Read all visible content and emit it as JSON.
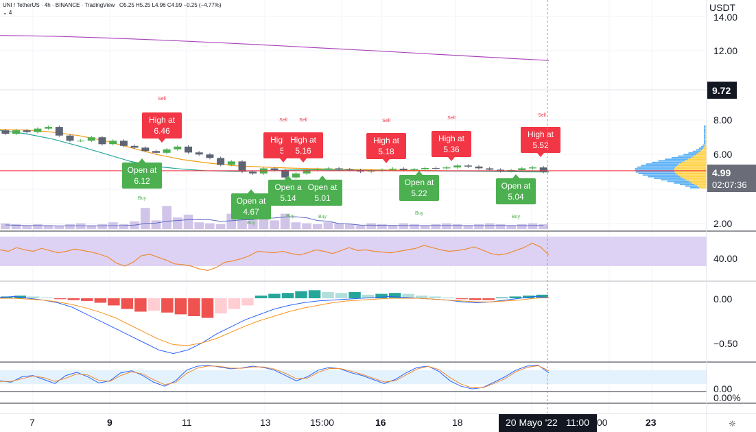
{
  "header": {
    "symbol": "UNI / TetherUS",
    "interval": "4h",
    "exchange": "BINANCE",
    "source": "TradingView",
    "ohlc": "O5.25 H5.25 L4.96 C4.99 −0.25 (−4.77%)",
    "indicator_toggle": "⌄ 4"
  },
  "price_axis": {
    "currency": "USDT",
    "ticks": [
      "14.00",
      "12.00",
      "8.00",
      "6.00",
      "2.00"
    ],
    "marker_high": "9.72",
    "marker_last": "4.99",
    "countdown": "02:07:36"
  },
  "rsi_axis": {
    "ticks": [
      "40.00"
    ]
  },
  "macd_axis": {
    "ticks": [
      "0.00",
      "−0.50"
    ]
  },
  "stoch_axis": {
    "ticks": [
      "0.00",
      "0.00%"
    ]
  },
  "time_axis": {
    "ticks": [
      "7",
      "9",
      "11",
      "13",
      "15:00",
      "16",
      "18",
      "20",
      "23"
    ],
    "bold": [
      "9",
      "16"
    ],
    "crosshair_date": "20 Mayo '22",
    "crosshair_time": "11:00"
  },
  "colors": {
    "up": "#26a69a",
    "down": "#ef5350",
    "sell_label": "#f23645",
    "buy_label": "#4caf50",
    "ma_orange": "#f39c12",
    "ma_teal": "#26a69a",
    "ma_purple": "#ab47bc",
    "rsi_band": "#d9cdf3",
    "volume": "#d1c4e9"
  },
  "chart_data": [
    {
      "type": "line",
      "pane": "price",
      "y_ticks": [
        2,
        6,
        8,
        12,
        14
      ],
      "last_price": 4.99,
      "signals": [
        {
          "kind": "sell",
          "label": "Sell"
        },
        {
          "kind": "high",
          "label": "High at",
          "value": "6.46"
        },
        {
          "kind": "open",
          "label": "Open at",
          "value": "6.12"
        },
        {
          "kind": "buy",
          "label": "Buy"
        },
        {
          "kind": "open",
          "label": "Open at",
          "value": "4.67"
        },
        {
          "kind": "buy",
          "label": "Buy"
        },
        {
          "kind": "sell",
          "label": "Sell"
        },
        {
          "kind": "high",
          "label": "High at",
          "value": "5."
        },
        {
          "kind": "high",
          "label": "High at",
          "value": "5.16"
        },
        {
          "kind": "open",
          "label": "Open a",
          "value": "5.14"
        },
        {
          "kind": "buy",
          "label": "Buy"
        },
        {
          "kind": "sell",
          "label": "Sell"
        },
        {
          "kind": "open",
          "label": "Open at",
          "value": "5.01"
        },
        {
          "kind": "buy",
          "label": "Buy"
        },
        {
          "kind": "sell",
          "label": "Sell"
        },
        {
          "kind": "high",
          "label": "High at",
          "value": "5.18"
        },
        {
          "kind": "open",
          "label": "Open at",
          "value": "5.22"
        },
        {
          "kind": "buy",
          "label": "Buy"
        },
        {
          "kind": "sell",
          "label": "Sell"
        },
        {
          "kind": "high",
          "label": "High at",
          "value": "5.36"
        },
        {
          "kind": "buy",
          "label": "Buy"
        },
        {
          "kind": "open",
          "label": "Open at",
          "value": "5.04"
        },
        {
          "kind": "sell",
          "label": "Sell"
        },
        {
          "kind": "high",
          "label": "High at",
          "value": "5.52"
        }
      ],
      "series": [
        {
          "name": "",
          "color": "#ab47bc",
          "values": [
            12.9,
            12.85,
            12.75,
            12.62,
            12.48,
            12.32,
            12.15,
            11.98,
            11.8,
            11.62,
            11.45
          ]
        },
        {
          "name": "",
          "color": "#f39c12",
          "values": [
            7.45,
            7.42,
            7.3,
            7.1,
            6.8,
            6.4,
            6.0,
            5.7,
            5.5,
            5.35,
            5.28,
            5.22,
            5.18,
            5.15,
            5.12,
            5.1,
            5.08,
            5.06,
            5.04,
            5.03,
            5.02,
            5.0
          ]
        },
        {
          "name": "",
          "color": "#26a69a",
          "values": [
            7.4,
            7.2,
            6.9,
            6.5,
            6.05,
            5.6,
            5.3,
            5.15,
            5.05,
            5.02,
            5.05,
            5.1,
            5.12,
            5.1,
            5.08,
            5.06,
            5.05,
            5.04,
            5.03,
            5.02,
            5.0,
            4.99
          ]
        }
      ],
      "candles": {
        "open": [
          7.4,
          7.2,
          7.4,
          7.3,
          7.5,
          7.6,
          7.1,
          6.8,
          6.8,
          7.0,
          6.6,
          6.8,
          6.5,
          6.4,
          6.2,
          6.1,
          6.3,
          6.46,
          6.12,
          6.0,
          5.8,
          5.4,
          5.6,
          5.0,
          4.9,
          5.2,
          5.1,
          4.67,
          4.9,
          5.1,
          5.16,
          5.2,
          5.14,
          5.1,
          5.01,
          5.08,
          5.12,
          5.18,
          5.1,
          5.15,
          5.22,
          5.2,
          5.25,
          5.36,
          5.3,
          5.2,
          5.12,
          5.04,
          5.1,
          5.2,
          5.25
        ],
        "close": [
          7.2,
          7.4,
          7.3,
          7.5,
          7.6,
          7.1,
          6.8,
          6.8,
          7.0,
          6.6,
          6.8,
          6.5,
          6.4,
          6.2,
          6.1,
          6.3,
          6.46,
          6.12,
          6.0,
          5.8,
          5.4,
          5.6,
          5.0,
          4.9,
          5.2,
          5.1,
          4.67,
          4.9,
          5.1,
          5.16,
          5.2,
          5.14,
          5.1,
          5.01,
          5.08,
          5.12,
          5.18,
          5.1,
          5.15,
          5.22,
          5.2,
          5.25,
          5.36,
          5.3,
          5.2,
          5.12,
          5.04,
          5.1,
          5.2,
          5.25,
          4.99
        ]
      },
      "volume": [
        0.6,
        0.5,
        0.4,
        0.5,
        0.4,
        0.3,
        0.5,
        0.6,
        0.4,
        0.5,
        0.7,
        0.5,
        0.8,
        2.2,
        0.9,
        2.4,
        1.2,
        1.5,
        0.7,
        0.6,
        0.5,
        1.6,
        3.3,
        1.4,
        3.0,
        0.9,
        1.6,
        0.7,
        0.6,
        0.5,
        0.7,
        0.6,
        0.5,
        0.4,
        0.6,
        0.5,
        0.4,
        0.6,
        0.5,
        0.4,
        0.5,
        0.6,
        0.5,
        0.4,
        0.5,
        0.6,
        0.5,
        0.4,
        0.5,
        0.6,
        0.5
      ]
    },
    {
      "type": "line",
      "pane": "rsi",
      "y_ticks": [
        40
      ],
      "band": [
        30,
        70
      ],
      "series": [
        {
          "name": "",
          "color": "#ef8a32",
          "values": [
            52,
            50,
            55,
            52,
            50,
            54,
            51,
            48,
            50,
            53,
            51,
            49,
            46,
            42,
            34,
            30,
            35,
            44,
            46,
            42,
            38,
            33,
            32,
            30,
            26,
            24,
            28,
            35,
            37,
            40,
            44,
            50,
            49,
            48,
            50,
            47,
            45,
            48,
            52,
            50,
            47,
            51,
            55,
            51,
            52,
            50,
            49,
            48,
            50,
            52,
            54,
            58,
            55,
            52,
            50,
            51,
            53,
            56,
            52,
            47,
            45,
            47,
            51,
            55,
            61,
            56,
            45
          ]
        }
      ]
    },
    {
      "type": "bar",
      "pane": "macd",
      "y_ticks": [
        0,
        -0.5
      ],
      "histogram": [
        0.02,
        0.03,
        0.02,
        0.01,
        -0.01,
        -0.02,
        -0.03,
        -0.05,
        -0.08,
        -0.12,
        -0.15,
        -0.14,
        -0.16,
        -0.18,
        -0.2,
        -0.22,
        -0.17,
        -0.12,
        -0.08,
        0.03,
        0.05,
        0.06,
        0.08,
        0.09,
        0.07,
        0.06,
        0.07,
        0.04,
        0.05,
        0.06,
        0.05,
        0.03,
        0.02,
        0.01,
        -0.01,
        -0.02,
        -0.02,
        0.01,
        0.02,
        0.03,
        0.04
      ],
      "series": [
        {
          "name": "",
          "color": "#2962ff",
          "values": [
            0.01,
            0.02,
            0.0,
            -0.02,
            -0.05,
            -0.1,
            -0.18,
            -0.26,
            -0.34,
            -0.42,
            -0.5,
            -0.58,
            -0.62,
            -0.58,
            -0.5,
            -0.4,
            -0.32,
            -0.24,
            -0.18,
            -0.12,
            -0.08,
            -0.05,
            -0.03,
            -0.02,
            -0.01,
            0.0,
            0.01,
            0.02,
            0.01,
            0.0,
            -0.01,
            -0.02,
            -0.04,
            -0.05,
            -0.04,
            -0.02,
            0.0,
            0.02,
            0.01
          ]
        },
        {
          "name": "",
          "color": "#f7931a",
          "values": [
            0.0,
            0.0,
            -0.01,
            -0.02,
            -0.04,
            -0.07,
            -0.11,
            -0.16,
            -0.22,
            -0.3,
            -0.38,
            -0.46,
            -0.52,
            -0.53,
            -0.5,
            -0.45,
            -0.38,
            -0.31,
            -0.25,
            -0.2,
            -0.15,
            -0.11,
            -0.08,
            -0.05,
            -0.03,
            -0.02,
            -0.01,
            0.0,
            0.0,
            0.0,
            -0.01,
            -0.02,
            -0.03,
            -0.04,
            -0.04,
            -0.03,
            -0.02,
            0.0,
            0.01
          ]
        }
      ]
    },
    {
      "type": "line",
      "pane": "stoch",
      "y_ticks": [
        0
      ],
      "series": [
        {
          "name": "",
          "color": "#2962ff",
          "values": [
            40,
            35,
            55,
            60,
            45,
            30,
            60,
            72,
            55,
            32,
            40,
            70,
            78,
            60,
            35,
            20,
            40,
            80,
            95,
            98,
            92,
            85,
            88,
            95,
            90,
            80,
            60,
            40,
            55,
            80,
            90,
            85,
            70,
            60,
            45,
            30,
            45,
            70,
            90,
            95,
            75,
            40,
            20,
            10,
            15,
            35,
            55,
            80,
            95,
            99,
            70
          ]
        },
        {
          "name": "",
          "color": "#ef8a32",
          "values": [
            38,
            38,
            48,
            58,
            52,
            38,
            50,
            66,
            62,
            42,
            38,
            60,
            74,
            66,
            44,
            26,
            34,
            68,
            88,
            96,
            94,
            88,
            87,
            92,
            92,
            84,
            68,
            48,
            50,
            72,
            86,
            86,
            76,
            64,
            50,
            36,
            40,
            62,
            84,
            94,
            82,
            52,
            28,
            14,
            14,
            30,
            48,
            74,
            90,
            97,
            78
          ]
        }
      ]
    }
  ]
}
